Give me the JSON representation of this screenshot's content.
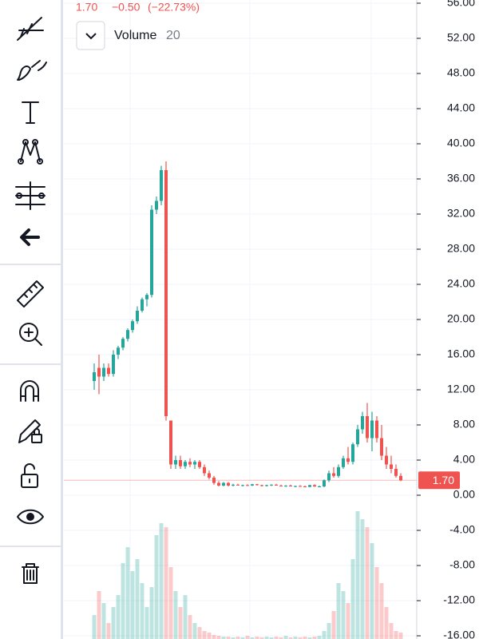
{
  "chart_data": {
    "type": "candlestick",
    "header": {
      "last": "1.70",
      "change": "−0.50",
      "change_pct": "(−22.73%)"
    },
    "indicator": {
      "name": "Volume",
      "length": "20"
    },
    "last_price": {
      "value": 1.7,
      "label": "1.70"
    },
    "up_color": "#26a69a",
    "down_color": "#ef5350",
    "ylim": [
      -16,
      56
    ],
    "yticks": [
      {
        "value": 56,
        "label": "56.00"
      },
      {
        "value": 52,
        "label": "52.00"
      },
      {
        "value": 48,
        "label": "48.00"
      },
      {
        "value": 44,
        "label": "44.00"
      },
      {
        "value": 40,
        "label": "40.00"
      },
      {
        "value": 36,
        "label": "36.00"
      },
      {
        "value": 32,
        "label": "32.00"
      },
      {
        "value": 28,
        "label": "28.00"
      },
      {
        "value": 24,
        "label": "24.00"
      },
      {
        "value": 20,
        "label": "20.00"
      },
      {
        "value": 16,
        "label": "16.00"
      },
      {
        "value": 12,
        "label": "12.00"
      },
      {
        "value": 8,
        "label": "8.00"
      },
      {
        "value": 4,
        "label": "4.00"
      },
      {
        "value": 0,
        "label": "0.00"
      },
      {
        "value": -4,
        "label": "-4.00"
      },
      {
        "value": -8,
        "label": "-8.00"
      },
      {
        "value": -12,
        "label": "-12.00"
      },
      {
        "value": -16,
        "label": "-16.00"
      }
    ],
    "grid": true,
    "open": [
      13,
      14.5,
      13.5,
      14.5,
      13.8,
      16,
      16.8,
      17.8,
      18.8,
      19.8,
      21,
      22.3,
      22.8,
      32.5,
      33.5,
      37,
      8.5,
      3.5,
      4,
      3.3,
      3.8,
      3.5,
      3.8,
      3.2,
      2.5,
      2,
      1.4,
      1.1,
      1.4,
      1.1,
      1.2,
      1.1,
      1.15,
      1.1,
      1.25,
      1.15,
      1.05,
      1.15,
      1.2,
      1.1,
      1.05,
      1.1,
      1,
      1.05,
      1,
      0.95,
      1.15,
      1,
      1,
      1.7,
      2.5,
      2.2,
      3.2,
      4.2,
      3.8,
      5.8,
      7.5,
      9,
      6.5,
      8.5,
      6.5,
      4.5,
      3.5,
      3,
      2.2
    ],
    "high": [
      15,
      16,
      15,
      15,
      16.5,
      17,
      18,
      19,
      20,
      21.5,
      22.5,
      23,
      33,
      34,
      37.5,
      38,
      8.5,
      4.5,
      4.5,
      4,
      4.2,
      4,
      4,
      3.5,
      2.8,
      2.2,
      1.6,
      1.5,
      1.5,
      1.3,
      1.3,
      1.2,
      1.25,
      1.3,
      1.3,
      1.2,
      1.2,
      1.25,
      1.3,
      1.2,
      1.15,
      1.2,
      1.1,
      1.15,
      1.1,
      1.2,
      1.25,
      1.1,
      1.8,
      2.8,
      3.2,
      3.5,
      4.5,
      5.5,
      6,
      8,
      9.5,
      10.5,
      9.5,
      9,
      8,
      5.5,
      4.5,
      3.5,
      2.5
    ],
    "low": [
      12,
      11.5,
      13,
      13.5,
      13.5,
      15.5,
      16.5,
      17.5,
      18.5,
      19.5,
      20.8,
      21.5,
      22.5,
      32,
      33,
      8.5,
      3,
      3,
      3,
      3,
      3.2,
      3,
      3,
      2.2,
      1.8,
      1.2,
      1,
      1,
      1,
      1,
      1.1,
      1,
      1.05,
      1.05,
      1.1,
      1,
      1,
      1.05,
      1.1,
      1,
      0.95,
      1,
      0.9,
      0.95,
      0.9,
      0.9,
      0.95,
      0.9,
      0.9,
      1.5,
      2,
      2,
      3,
      3.5,
      3.5,
      5.5,
      7,
      6,
      5,
      6,
      4,
      3,
      2.5,
      2,
      1.6
    ],
    "close": [
      14,
      13.5,
      14.5,
      13.8,
      16,
      16.8,
      17.8,
      18.8,
      19.8,
      21,
      22.3,
      22.8,
      32.5,
      33.5,
      37,
      9,
      3.5,
      4,
      3.3,
      3.8,
      3.5,
      3.8,
      3.2,
      2.5,
      2,
      1.4,
      1.1,
      1.4,
      1.1,
      1.2,
      1.1,
      1.15,
      1.1,
      1.25,
      1.15,
      1.05,
      1.15,
      1.2,
      1.1,
      1.05,
      1.1,
      1,
      1.05,
      1,
      0.95,
      1.15,
      1,
      1,
      1.7,
      2.5,
      2.2,
      3.2,
      4.2,
      3.8,
      5.8,
      7.5,
      9,
      6.5,
      8.5,
      6.5,
      4.5,
      3.5,
      3,
      2.2,
      1.7
    ],
    "volume": [
      30,
      60,
      45,
      20,
      40,
      55,
      95,
      115,
      85,
      100,
      70,
      40,
      65,
      130,
      145,
      140,
      90,
      60,
      40,
      55,
      30,
      20,
      15,
      10,
      8,
      5,
      4,
      3,
      3,
      2,
      3,
      2,
      4,
      2,
      3,
      2,
      3,
      2,
      3,
      2,
      4,
      2,
      3,
      2,
      3,
      2,
      3,
      4,
      10,
      20,
      35,
      70,
      60,
      45,
      100,
      160,
      150,
      140,
      120,
      90,
      70,
      40,
      20,
      10,
      8
    ]
  }
}
